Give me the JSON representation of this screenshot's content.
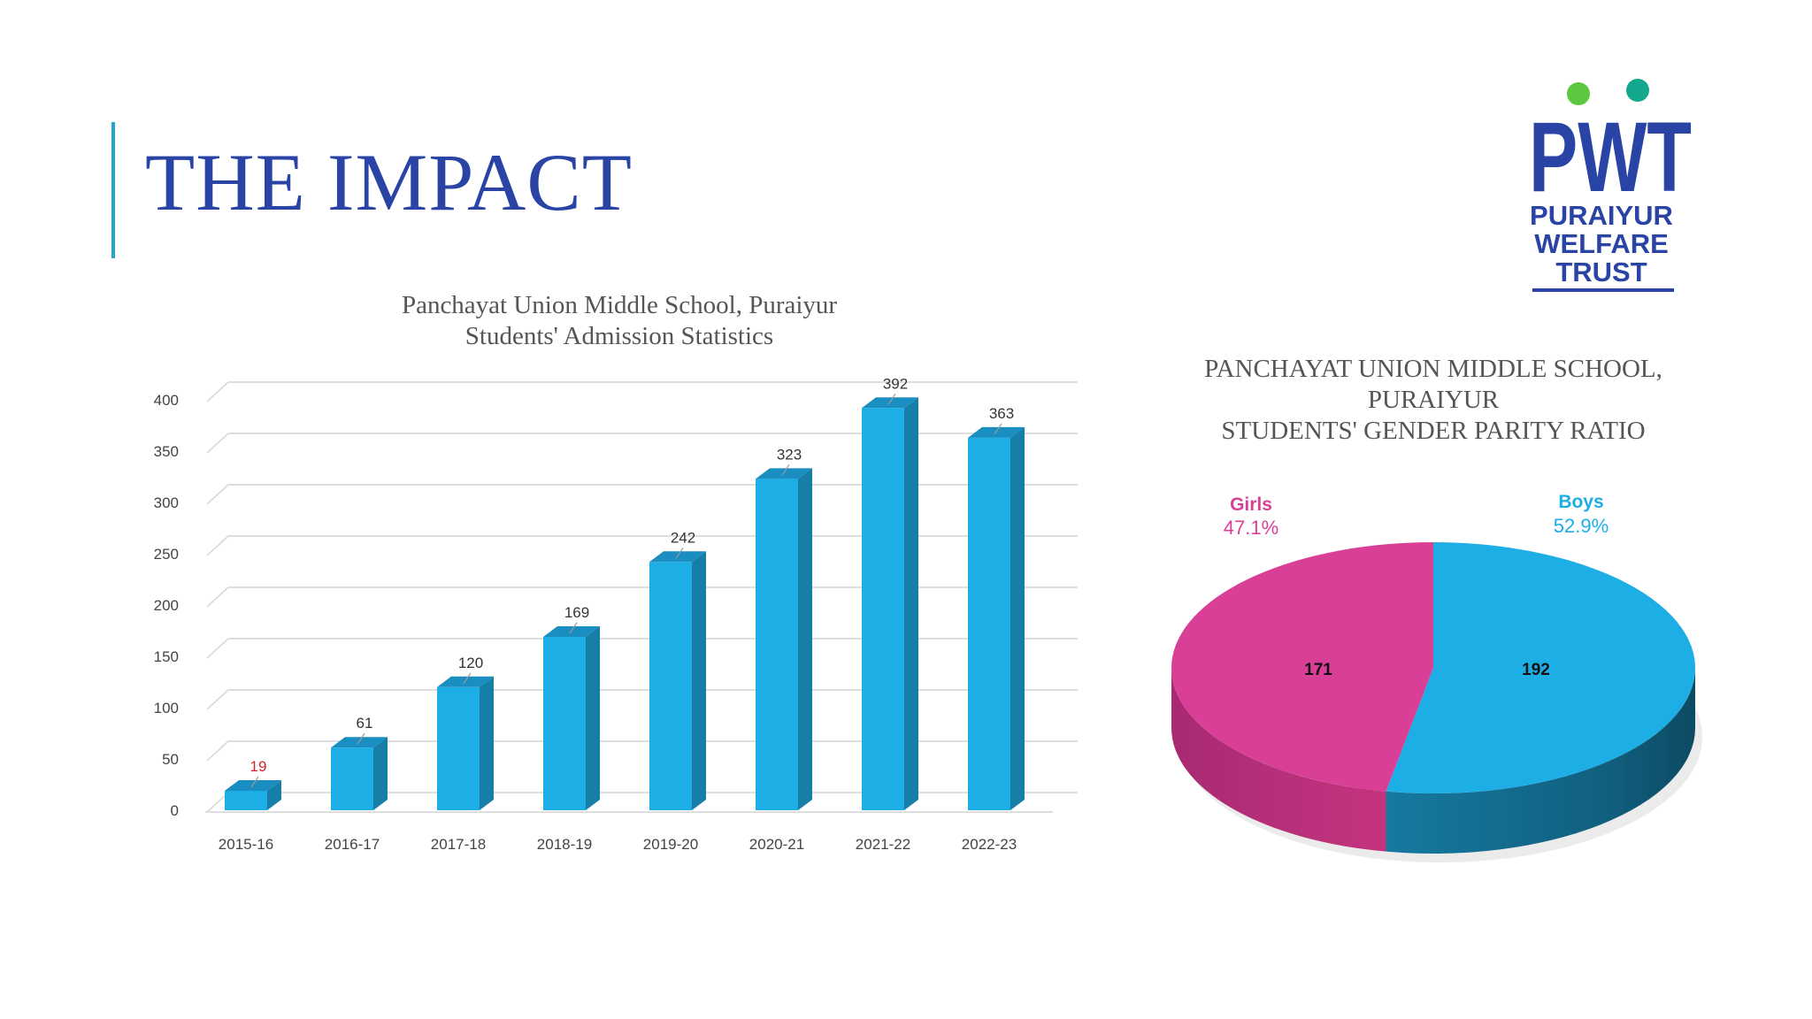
{
  "slide": {
    "title": "THE IMPACT"
  },
  "logo": {
    "mark": "PWT",
    "line1": "PURAIYUR",
    "line2": "WELFARE",
    "line3": "TRUST"
  },
  "colors": {
    "title": "#2a44a6",
    "bar": "#1eaee6",
    "bar_side": "#157fa8",
    "bar_top": "#1a8ec0",
    "girls": "#d93f97",
    "boys": "#1eaee6",
    "highlight_label": "#d8232a",
    "logo_blue": "#2a44a6",
    "logo_green": "#5cc842",
    "logo_teal": "#13a98e"
  },
  "chart_data": [
    {
      "type": "bar",
      "title": "Panchayat Union Middle School, Puraiyur Students' Admission Statistics",
      "title_lines": [
        "Panchayat Union Middle School, Puraiyur",
        "Students' Admission Statistics"
      ],
      "categories": [
        "2015-16",
        "2016-17",
        "2017-18",
        "2018-19",
        "2019-20",
        "2020-21",
        "2021-22",
        "2022-23"
      ],
      "values": [
        19,
        61,
        120,
        169,
        242,
        323,
        392,
        363
      ],
      "ylim": [
        0,
        400
      ],
      "yticks": [
        0,
        50,
        100,
        150,
        200,
        250,
        300,
        350,
        400
      ],
      "xlabel": "",
      "ylabel": "",
      "grid": true,
      "highlight_first_label": true
    },
    {
      "type": "pie",
      "title": "PANCHAYAT UNION MIDDLE SCHOOL, PURAIYUR STUDENTS' GENDER PARITY RATIO",
      "title_lines": [
        "PANCHAYAT UNION MIDDLE SCHOOL,",
        "PURAIYUR",
        "STUDENTS' GENDER PARITY RATIO"
      ],
      "slices": [
        {
          "label": "Girls",
          "value": 171,
          "percent_label": "47.1%"
        },
        {
          "label": "Boys",
          "value": 192,
          "percent_label": "52.9%"
        }
      ]
    }
  ]
}
